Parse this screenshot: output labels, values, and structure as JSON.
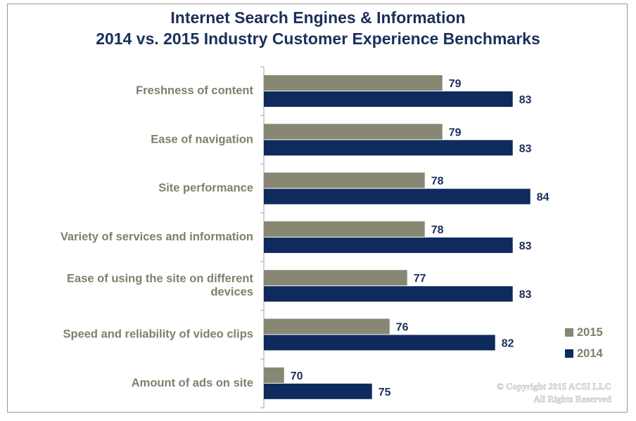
{
  "chart_data": {
    "type": "bar",
    "orientation": "horizontal",
    "title": "Internet Search Engines & Information",
    "subtitle": "2014 vs. 2015 Industry Customer Experience Benchmarks",
    "categories": [
      [
        "Freshness of content"
      ],
      [
        "Ease of navigation"
      ],
      [
        "Site performance"
      ],
      [
        "Variety of services and information"
      ],
      [
        "Ease of using the site on different",
        "devices"
      ],
      [
        "Speed and reliability of video clips"
      ],
      [
        "Amount of ads on site"
      ]
    ],
    "series": [
      {
        "name": "2015",
        "color": "#878773",
        "values": [
          79,
          79,
          78,
          78,
          77,
          76,
          70
        ]
      },
      {
        "name": "2014",
        "color": "#0f2a5c",
        "values": [
          83,
          83,
          84,
          83,
          83,
          82,
          75
        ]
      }
    ],
    "legend_order": [
      "2015",
      "2014"
    ],
    "legend_position": "right",
    "xlim": [
      55,
      88
    ],
    "grid": false,
    "watermark": [
      "© Copyright 2015 ACSI LLC",
      "All Rights Reserved"
    ]
  }
}
